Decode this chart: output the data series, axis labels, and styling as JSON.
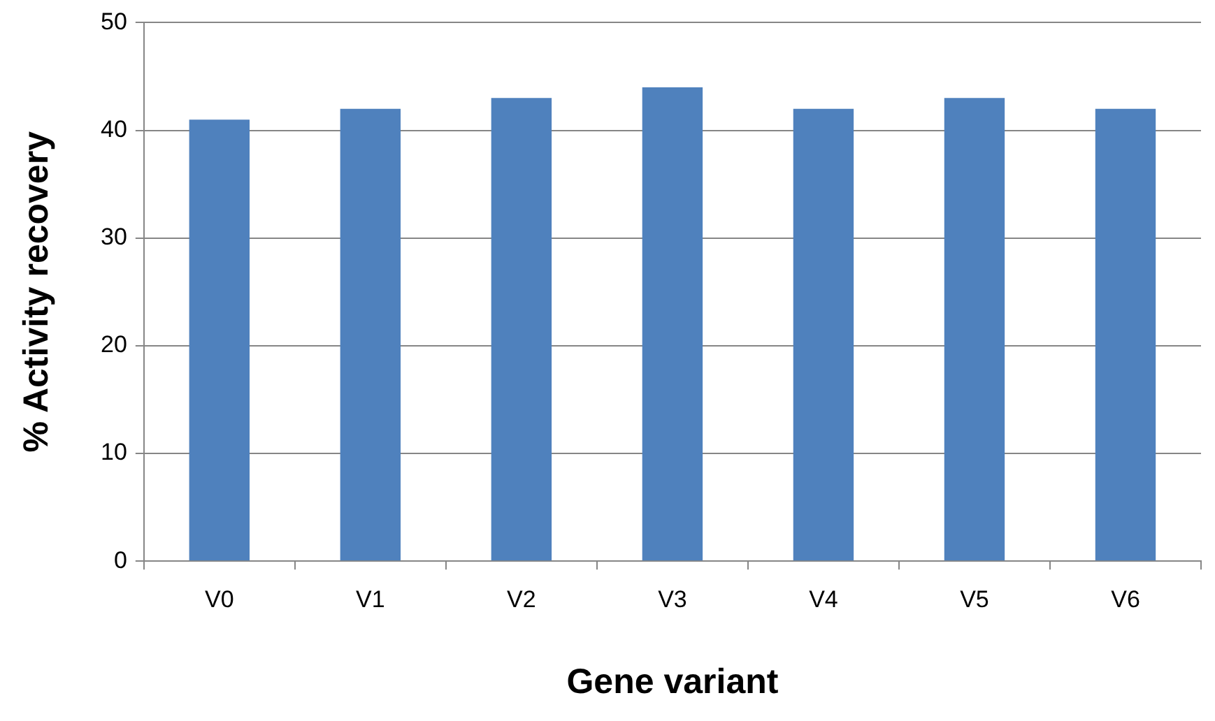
{
  "chart_data": {
    "type": "bar",
    "xlabel": "Gene variant",
    "ylabel": "% Activity recovery",
    "categories": [
      "V0",
      "V1",
      "V2",
      "V3",
      "V4",
      "V5",
      "V6"
    ],
    "values": [
      41,
      42,
      43,
      44,
      42,
      43,
      42
    ],
    "color": "#4f81bd",
    "ylim": [
      0,
      50
    ],
    "yticks": [
      0,
      10,
      20,
      30,
      40,
      50
    ],
    "grid": "y",
    "legend": false
  }
}
